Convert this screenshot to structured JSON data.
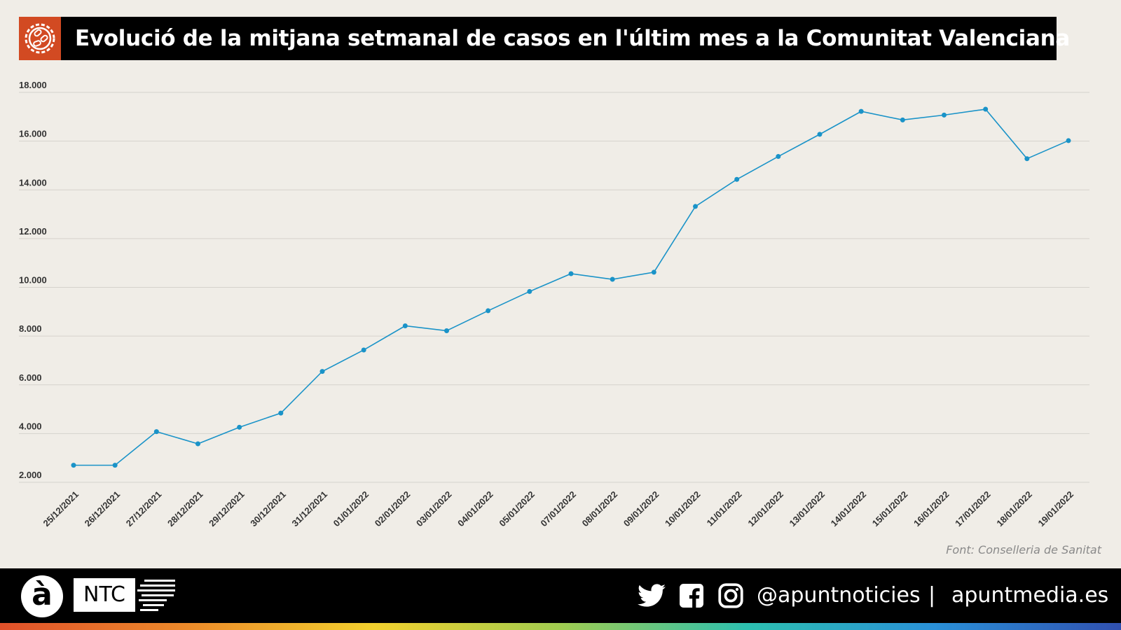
{
  "header": {
    "title": "Evolució de la mitjana setmanal de casos en l'últim mes a la Comunitat Valenciana",
    "icon": "virus-icon",
    "accent": "#d24a22"
  },
  "chart_data": {
    "type": "line",
    "title": "Evolució de la mitjana setmanal de casos en l'últim mes a la Comunitat Valenciana",
    "xlabel": "",
    "ylabel": "",
    "ylim": [
      2000,
      18000
    ],
    "yticks": [
      2000,
      4000,
      6000,
      8000,
      10000,
      12000,
      14000,
      16000,
      18000
    ],
    "ytick_labels": [
      "2.000",
      "4.000",
      "6.000",
      "8.000",
      "10.000",
      "12.000",
      "14.000",
      "16.000",
      "18.000"
    ],
    "grid": true,
    "color": "#1a93c8",
    "categories": [
      "25/12/2021",
      "26/12/2021",
      "27/12/2021",
      "28/12/2021",
      "29/12/2021",
      "30/12/2021",
      "31/12/2021",
      "01/01/2022",
      "02/01/2022",
      "03/01/2022",
      "04/01/2022",
      "05/01/2022",
      "07/01/2022",
      "08/01/2022",
      "09/01/2022",
      "10/01/2022",
      "11/01/2022",
      "12/01/2022",
      "13/01/2022",
      "14/01/2022",
      "15/01/2022",
      "16/01/2022",
      "17/01/2022",
      "18/01/2022",
      "19/01/2022"
    ],
    "values": [
      2700,
      2700,
      4080,
      3580,
      4260,
      4840,
      6550,
      7430,
      8420,
      8220,
      9040,
      9830,
      10560,
      10330,
      10620,
      13320,
      14430,
      15370,
      16280,
      17220,
      16870,
      17070,
      17310,
      15280,
      16020
    ]
  },
  "source": "Font: Conselleria de Sanitat",
  "footer": {
    "logo_letter": "à",
    "ntc": "NTC",
    "handle": "@apuntnoticies",
    "separator": "|",
    "site": "apuntmedia.es"
  }
}
